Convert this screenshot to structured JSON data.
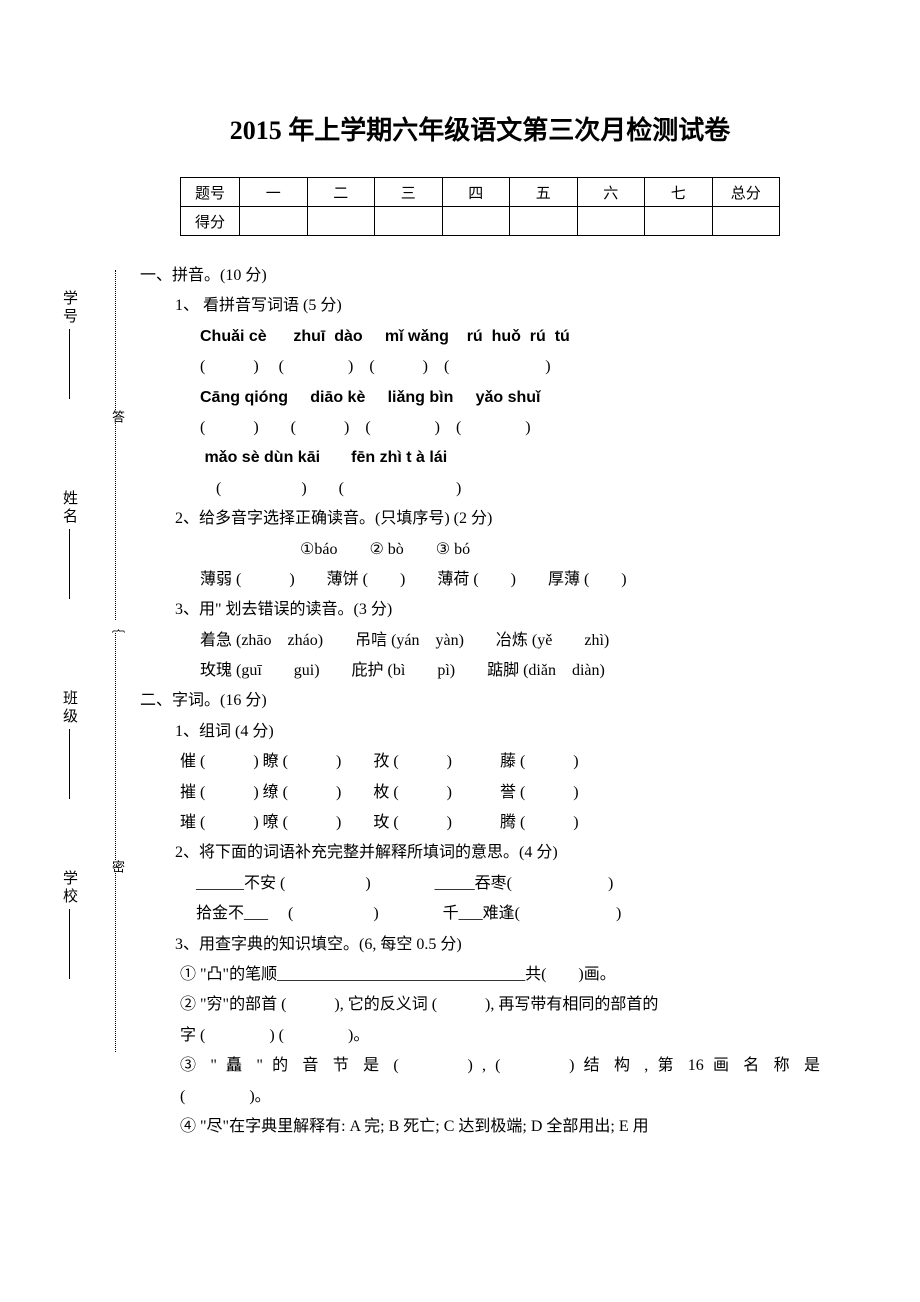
{
  "title": "2015 年上学期六年级语文第三次月检测试卷",
  "table": {
    "row1": [
      "题号",
      "一",
      "二",
      "三",
      "四",
      "五",
      "六",
      "七",
      "总分"
    ],
    "row2_label": "得分"
  },
  "sections": {
    "s1": {
      "heading": "一、拼音。(10 分)",
      "q1": {
        "label": "1、 看拼音写词语 (5 分)",
        "pinyin1": "Chuǎi cè      zhuī  dào     mǐ wǎng    rú  huǒ  rú  tú",
        "blanks1": "(　　　)　 (　　　　)　(　　　)　(　　　　　　)",
        "pinyin2": "Cāng qióng     diāo kè     liǎng bìn     yǎo shuǐ",
        "blanks2": "(　　　)　　(　　　)　(　　　　)　(　　　　)",
        "pinyin3": " mǎo sè dùn kāi       fēn zhì t à lái",
        "blanks3": "　(　　　　　)　　(　　　　　　　)"
      },
      "q2": {
        "label": "2、给多音字选择正确读音。(只填序号) (2 分)",
        "options": "①báo　　② bò　　③ bó",
        "line": "薄弱 (　　　)　　薄饼 (　　)　　薄荷 (　　)　　厚薄 (　　)"
      },
      "q3": {
        "label": "3、用\" 划去错误的读音。(3 分)",
        "line1": "着急 (zhāo　zháo)　　吊唁 (yán　yàn)　　冶炼 (yě　　zhì)",
        "line2": "玫瑰 (guī　　gui)　　庇护 (bì　　pì)　　踮脚 (diǎn　diàn)"
      }
    },
    "s2": {
      "heading": "二、字词。(16 分)",
      "q1": {
        "label": "1、组词 (4 分)",
        "line1": "催 (　　　) 瞭 (　　　)　　孜 (　　　)　　　藤 (　　　)",
        "line2": "摧 (　　　) 缭 (　　　)　　枚 (　　　)　　　誉 (　　　)",
        "line3": "璀 (　　　) 嘹 (　　　)　　玫 (　　　)　　　腾 (　　　)"
      },
      "q2": {
        "label": "2、将下面的词语补充完整并解释所填词的意思。(4 分)",
        "line1": "　______不安 (　　　　　)　　　　_____吞枣(　　　　　　)",
        "line2": "　拾金不___　 (　　　　　)　　　　千___难逢(　　　　　　)"
      },
      "q3": {
        "label": "3、用查字典的知识填空。(6, 每空 0.5 分)",
        "line1": "① \"凸\"的笔顺_______________________________共(　　)画。",
        "line2": "② \"穷\"的部首 (　　　), 它的反义词 (　　　), 再写带有相同的部首的",
        "line3": "字 (　　　　) (　　　　)。",
        "line4a": "③ \" 矗 \" 的 音 节 是 (　　　) , (　　　) 结 构 , 第 16 画 名 称 是",
        "line4b": "(　　　　)。",
        "line5": "④ \"尽\"在字典里解释有: A 完; B 死亡; C 达到极端; D 全部用出; E 用"
      }
    }
  },
  "vertical_labels": {
    "v1": "学号",
    "v2": "姓名",
    "v3": "班级",
    "v4": "学校"
  },
  "dotted_tags": {
    "t1": "答",
    "t2": "｛",
    "t3": "密"
  }
}
